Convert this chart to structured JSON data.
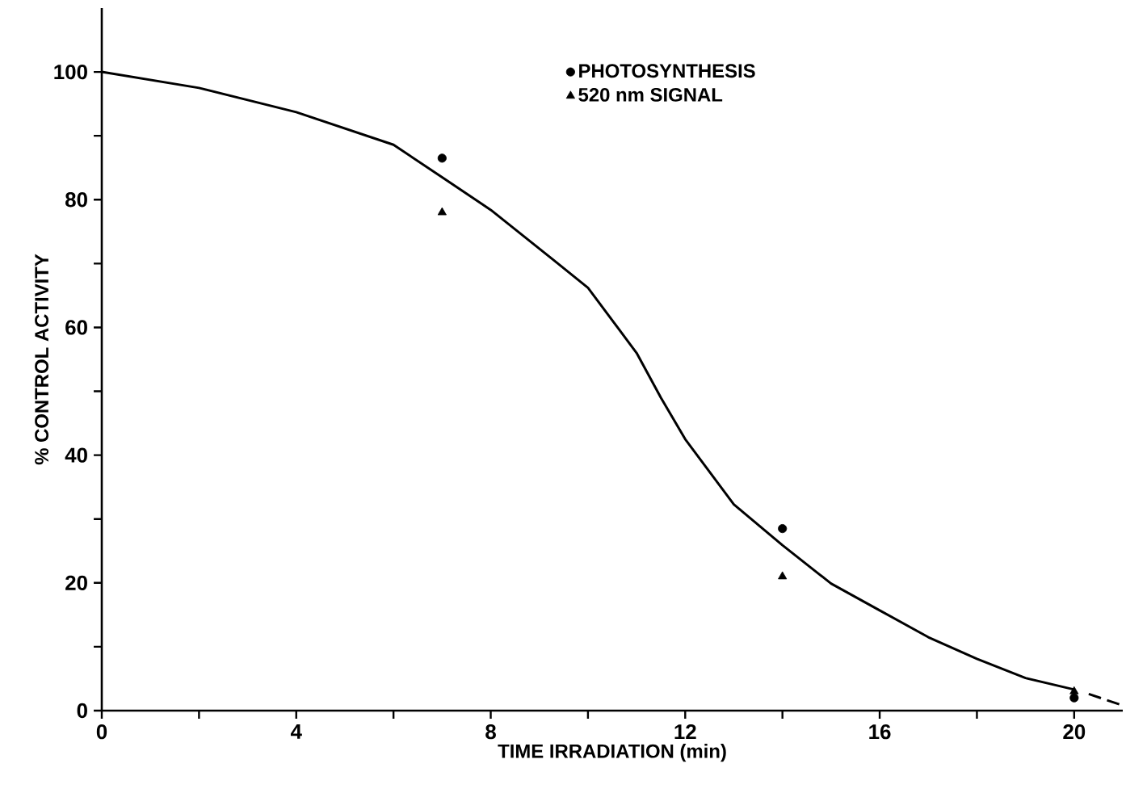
{
  "chart_data": {
    "type": "scatter",
    "xlabel": "TIME IRRADIATION (min)",
    "ylabel": "% CONTROL ACTIVITY",
    "xlim": [
      0,
      21
    ],
    "ylim": [
      0,
      110
    ],
    "xticks": [
      0,
      {
        "value": 2,
        "label": null
      },
      4,
      {
        "value": 6,
        "label": null
      },
      8,
      {
        "value": 10,
        "label": null
      },
      12,
      {
        "value": 14,
        "label": null
      },
      16,
      {
        "value": 18,
        "label": null
      },
      20
    ],
    "yticks": [
      0,
      {
        "value": 10,
        "label": null
      },
      20,
      {
        "value": 30,
        "label": null
      },
      40,
      {
        "value": 50,
        "label": null
      },
      60,
      {
        "value": 70,
        "label": null
      },
      80,
      {
        "value": 90,
        "label": null
      },
      100
    ],
    "legend": "top right",
    "series": [
      {
        "type": "line",
        "color": "#000000",
        "marker": "none",
        "line_style": "solid",
        "x": [
          0,
          2,
          4,
          6,
          7,
          8,
          9.3,
          10,
          11,
          11.5,
          12,
          13,
          14,
          15,
          16,
          17,
          18,
          19,
          20
        ],
        "values": [
          100,
          97.5,
          93.7,
          88.6,
          83.5,
          78.4,
          70.5,
          66.2,
          56,
          49,
          42.5,
          32.3,
          25.9,
          19.9,
          15.7,
          11.5,
          8.1,
          5.1,
          3.3
        ]
      },
      {
        "type": "line",
        "color": "#000000",
        "marker": "none",
        "line_style": "dashed",
        "x": [
          20.3,
          21
        ],
        "values": [
          2.6,
          0.8
        ]
      },
      {
        "name": "PHOTOSYNTHESIS",
        "color": "#000000",
        "marker": "circle",
        "x": [
          7,
          14,
          20
        ],
        "values": [
          86.5,
          28.5,
          2
        ]
      },
      {
        "name": "520 nm SIGNAL",
        "color": "#000000",
        "marker": "triangle",
        "x": [
          7,
          14,
          20
        ],
        "values": [
          78,
          21,
          3
        ]
      }
    ]
  }
}
